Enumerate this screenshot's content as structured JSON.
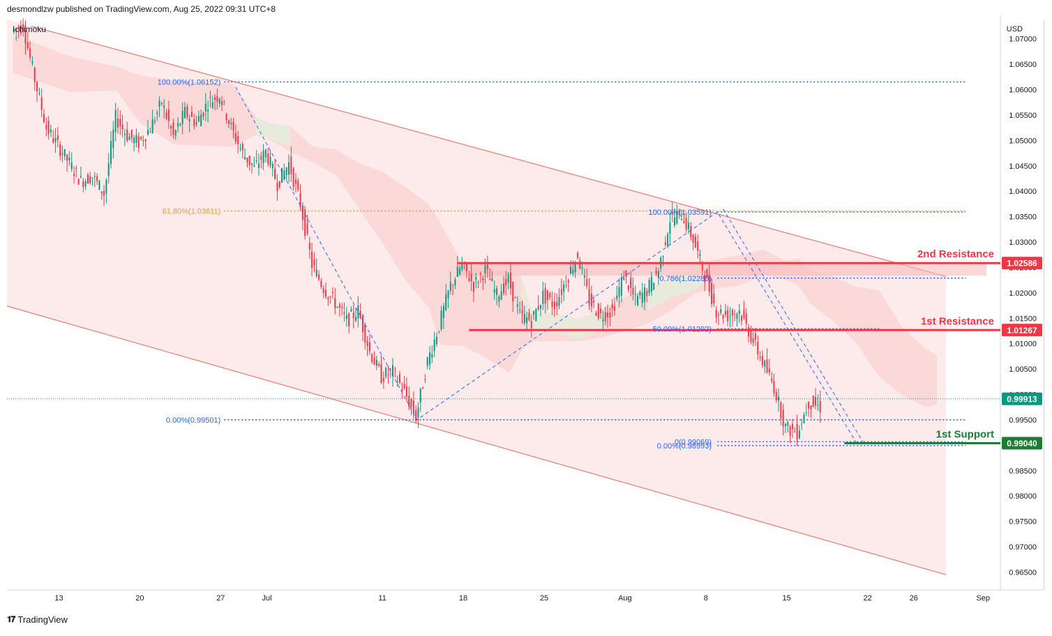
{
  "header": {
    "published_by": "desmondlzw published on TradingView.com, Aug 25, 2022 09:31 UTC+8",
    "indicator": "Ichimoku"
  },
  "footer": {
    "brand": "TradingView",
    "logo_icon": "tradingview-logo-icon"
  },
  "chart_data": {
    "type": "candlestick",
    "currency": "USD",
    "ylim": [
      0.9615,
      1.0738
    ],
    "yticks": [
      1.07,
      1.065,
      1.06,
      1.055,
      1.05,
      1.045,
      1.04,
      1.035,
      1.03,
      1.025,
      1.02,
      1.015,
      1.01,
      1.005,
      1.0,
      0.995,
      0.99,
      0.985,
      0.98,
      0.975,
      0.97,
      0.965
    ],
    "ytick_labels": [
      "1.07000",
      "1.06500",
      "1.06000",
      "1.05500",
      "1.05000",
      "1.04500",
      "1.04000",
      "1.03500",
      "1.03000",
      "1.02500",
      "1.02000",
      "1.01500",
      "1.01000",
      "1.00500",
      "1.00000",
      "0.99500",
      "0.99000",
      "0.98500",
      "0.98000",
      "0.97500",
      "0.97000",
      "0.96500"
    ],
    "xticks": [
      {
        "label": "13",
        "day": 4
      },
      {
        "label": "20",
        "day": 11
      },
      {
        "label": "27",
        "day": 18
      },
      {
        "label": "Jul",
        "day": 22
      },
      {
        "label": "11",
        "day": 32
      },
      {
        "label": "18",
        "day": 39
      },
      {
        "label": "25",
        "day": 46
      },
      {
        "label": "Aug",
        "day": 53
      },
      {
        "label": "8",
        "day": 60
      },
      {
        "label": "15",
        "day": 67
      },
      {
        "label": "22",
        "day": 74
      },
      {
        "label": "26",
        "day": 78
      },
      {
        "label": "Sep",
        "day": 84
      }
    ],
    "xlim_days": [
      -0.5,
      85.5
    ],
    "price_keypoints": [
      [
        0,
        1.0715
      ],
      [
        1,
        1.0725
      ],
      [
        2,
        1.062
      ],
      [
        3,
        1.0525
      ],
      [
        4,
        1.049
      ],
      [
        5,
        1.0455
      ],
      [
        6,
        1.042
      ],
      [
        7,
        1.043
      ],
      [
        8,
        1.0395
      ],
      [
        9,
        1.0545
      ],
      [
        10,
        1.051
      ],
      [
        11,
        1.0495
      ],
      [
        12,
        1.0525
      ],
      [
        13,
        1.0575
      ],
      [
        14,
        1.0508
      ],
      [
        15,
        1.0555
      ],
      [
        16,
        1.0535
      ],
      [
        17,
        1.0575
      ],
      [
        18,
        1.059
      ],
      [
        19,
        1.0525
      ],
      [
        20,
        1.0475
      ],
      [
        21,
        1.0445
      ],
      [
        22,
        1.0478
      ],
      [
        23,
        1.0415
      ],
      [
        24,
        1.0455
      ],
      [
        25,
        1.0375
      ],
      [
        26,
        1.0255
      ],
      [
        27,
        1.021
      ],
      [
        28,
        1.018
      ],
      [
        29,
        1.0145
      ],
      [
        30,
        1.0165
      ],
      [
        31,
        1.0085
      ],
      [
        32,
        1.0035
      ],
      [
        33,
        1.0045
      ],
      [
        34,
        1.0005
      ],
      [
        35,
        0.9955
      ],
      [
        36,
        1.0065
      ],
      [
        37,
        1.0135
      ],
      [
        38,
        1.0215
      ],
      [
        39,
        1.0255
      ],
      [
        40,
        1.0215
      ],
      [
        41,
        1.0245
      ],
      [
        42,
        1.0195
      ],
      [
        43,
        1.0225
      ],
      [
        44,
        1.0155
      ],
      [
        45,
        1.0145
      ],
      [
        46,
        1.0195
      ],
      [
        47,
        1.0175
      ],
      [
        48,
        1.0225
      ],
      [
        49,
        1.0275
      ],
      [
        50,
        1.0185
      ],
      [
        51,
        1.0155
      ],
      [
        52,
        1.0165
      ],
      [
        53,
        1.0235
      ],
      [
        54,
        1.0185
      ],
      [
        55,
        1.0205
      ],
      [
        56,
        1.0245
      ],
      [
        57,
        1.0345
      ],
      [
        58,
        1.0355
      ],
      [
        59,
        1.0305
      ],
      [
        60,
        1.0235
      ],
      [
        61,
        1.0165
      ],
      [
        62,
        1.0155
      ],
      [
        63,
        1.0165
      ],
      [
        64,
        1.0115
      ],
      [
        65,
        1.0065
      ],
      [
        66,
        1.0015
      ],
      [
        67,
        0.9935
      ],
      [
        68,
        0.9925
      ],
      [
        69,
        0.9985
      ],
      [
        70,
        0.9975
      ]
    ],
    "cloud": [
      [
        0,
        1.0633,
        1.0708
      ],
      [
        5,
        1.0595,
        1.0665
      ],
      [
        9,
        1.0598,
        1.0645
      ],
      [
        11,
        1.0535,
        1.0628
      ],
      [
        14,
        1.0492,
        1.0618
      ],
      [
        19,
        1.0488,
        1.0612
      ],
      [
        21,
        1.051,
        1.0548
      ],
      [
        22,
        1.0505,
        1.0535
      ],
      [
        24,
        1.0478,
        1.0528
      ],
      [
        26,
        1.0456,
        1.0488
      ],
      [
        28,
        1.0432,
        1.0482
      ],
      [
        30,
        1.0365,
        1.0455
      ],
      [
        32,
        1.0298,
        1.0438
      ],
      [
        34,
        1.0225,
        1.0408
      ],
      [
        36,
        1.0172,
        1.0375
      ],
      [
        37,
        1.0098,
        1.0338
      ],
      [
        39,
        1.0095,
        1.0255
      ],
      [
        41,
        1.0072,
        1.0248
      ],
      [
        43,
        1.0042,
        1.0242
      ],
      [
        44,
        1.0085,
        1.0232
      ],
      [
        45,
        1.0105,
        1.0162
      ],
      [
        47,
        1.0105,
        1.016
      ],
      [
        49,
        1.0105,
        1.0148
      ],
      [
        51,
        1.0112,
        1.0168
      ],
      [
        53,
        1.0125,
        1.0192
      ],
      [
        55,
        1.014,
        1.0205
      ],
      [
        57,
        1.0165,
        1.0232
      ],
      [
        59,
        1.0198,
        1.0245
      ],
      [
        60,
        1.0205,
        1.0262
      ],
      [
        63,
        1.0215,
        1.0275
      ],
      [
        65,
        1.0235,
        1.0285
      ],
      [
        67,
        1.0225,
        1.0262
      ],
      [
        68,
        1.0215,
        1.0268
      ],
      [
        69,
        1.018,
        1.0245
      ],
      [
        71,
        1.0145,
        1.0232
      ],
      [
        73,
        1.0102,
        1.0212
      ],
      [
        75,
        1.0035,
        1.0205
      ],
      [
        77,
        0.9998,
        1.0132
      ],
      [
        79,
        0.9975,
        1.009
      ],
      [
        80,
        0.998,
        1.0078
      ]
    ],
    "channel": {
      "upper": [
        [
          1.6,
          1.0725
        ],
        [
          80.8,
          1.0232
        ]
      ],
      "lower": [
        [
          -0.5,
          1.0174
        ],
        [
          80.8,
          0.9645
        ]
      ],
      "fill_until_day": 80.8
    },
    "fibonacci": [
      {
        "label": "100.00%(1.06152)",
        "price": 1.06152,
        "day_from": 18.3,
        "day_to": 82.5,
        "color": "#2962ff",
        "label_day": 18.0
      },
      {
        "label": "61.80%(1.03611)",
        "price": 1.03611,
        "day_from": 18.3,
        "day_to": 82.5,
        "color": "#e8a030",
        "label_day": 18.0
      },
      {
        "label": "0.00%(0.99501)",
        "price": 0.99501,
        "day_from": 18.3,
        "day_to": 82.5,
        "color": "#2962ff",
        "label_day": 18.0
      },
      {
        "label": "100.00%(1.03591)",
        "price": 1.03591,
        "day_from": 61.0,
        "day_to": 82.5,
        "color": "#2962ff",
        "label_day": 60.5
      },
      {
        "label": "0.786(1.02289)",
        "price": 1.02289,
        "day_from": 61.0,
        "day_to": 82.5,
        "color": "#2962ff",
        "label_day": 60.5
      },
      {
        "label": "50.00%(1.01292)",
        "price": 1.01292,
        "day_from": 61.0,
        "day_to": 75.0,
        "color": "#2962ff",
        "label_day": 60.5
      },
      {
        "label": "0(0.99069)",
        "price": 0.99069,
        "day_from": 61.0,
        "day_to": 82.5,
        "color": "#2962ff",
        "label_day": 60.5
      },
      {
        "label": "0.00%(0.98993)",
        "price": 0.98993,
        "day_from": 61.0,
        "day_to": 82.5,
        "color": "#2962ff",
        "label_day": 60.5
      }
    ],
    "zigzag": [
      [
        [
          19.3,
          1.0605
        ],
        [
          35.0,
          0.99501
        ],
        [
          61.0,
          1.03591
        ],
        [
          73.0,
          0.9906
        ]
      ],
      [
        [
          61.5,
          1.0365
        ],
        [
          73.8,
          0.9899
        ]
      ]
    ],
    "levels": [
      {
        "name": "2nd Resistance",
        "price": 1.02586,
        "day_from": 38.5,
        "day_to": 84.3,
        "color": "#f23645",
        "label": "1.02586",
        "zone_bottom": 1.0234
      },
      {
        "name": "1st Resistance",
        "price": 1.01267,
        "day_from": 39.5,
        "day_to": 84.3,
        "color": "#f23645",
        "label": "1.01267"
      },
      {
        "name": "1st Support",
        "price": 0.9904,
        "day_from": 72.0,
        "day_to": 84.3,
        "color": "#1e7b34",
        "label": "0.99040"
      }
    ],
    "current_price": {
      "price": 0.99913,
      "label": "0.99913",
      "color": "#089981"
    },
    "colors": {
      "up": "#089981",
      "down": "#f23645",
      "cloud": "#fbd6d6",
      "cloud_green": "#e6ebdc",
      "channel": "#f07a6e",
      "channel_fill": "#fdeaea"
    }
  }
}
